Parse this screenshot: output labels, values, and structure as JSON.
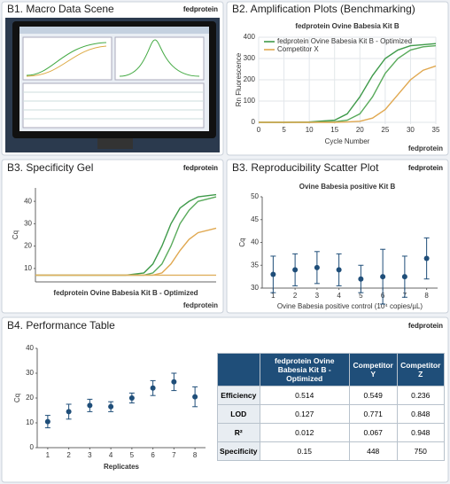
{
  "panels": [
    {
      "title": "B1. Macro Data Scene",
      "brand": "fedprotein"
    },
    {
      "title": "B2. Amplification Plots (Benchmarking)"
    },
    {
      "title": "B3. Specificity Gel",
      "brand": "fedprotein"
    },
    {
      "title": "B3. Reproducibility Scatter Plot",
      "brand": "fedprotein"
    },
    {
      "title": "B4. Performance Table",
      "brand": "fedprotein"
    }
  ],
  "chart_data": [
    {
      "type": "line",
      "title": "fedprotein Ovine Babesia Kit B",
      "x_label": "Cycle Number",
      "y_label": "Rn Fluorescence",
      "footer": "fedprotein",
      "grid": true,
      "legend": "top-left",
      "x": [
        0,
        5,
        10,
        15,
        17.5,
        20,
        22.5,
        25,
        27.5,
        30,
        32.5,
        35
      ],
      "series": [
        {
          "name": "fedprotein Ovine Babesia Kit B - Optimized",
          "color": "#3f9a4a",
          "values": [
            0,
            0,
            2,
            10,
            40,
            120,
            220,
            300,
            340,
            360,
            365,
            370
          ]
        },
        {
          "name": null,
          "color": "#5aab5c",
          "values": [
            0,
            0,
            0,
            3,
            10,
            40,
            120,
            230,
            300,
            340,
            355,
            360
          ]
        },
        {
          "name": "Competitor X",
          "color": "#e0a850",
          "values": [
            0,
            0,
            0,
            0,
            2,
            5,
            20,
            60,
            130,
            200,
            245,
            265
          ]
        }
      ],
      "xlim": [
        0,
        35
      ],
      "xticks": [
        0,
        5,
        10,
        15,
        20,
        25,
        30,
        35
      ],
      "ylim": [
        0,
        400
      ],
      "yticks": [
        0,
        100,
        200,
        300,
        400
      ]
    },
    {
      "type": "line",
      "caption": "fedprotein Ovine Babesia Kit B - Optimized",
      "y_label": "Cq",
      "footer": "fedprotein",
      "grid": false,
      "x": [
        0,
        10,
        20,
        24,
        26,
        28,
        30,
        32,
        34,
        36,
        40
      ],
      "series": [
        {
          "name": null,
          "color": "#3f9a4a",
          "values": [
            7,
            7,
            7,
            8,
            12,
            20,
            30,
            37,
            40,
            42,
            43
          ]
        },
        {
          "name": null,
          "color": "#5aab5c",
          "values": [
            7,
            7,
            7,
            7,
            8,
            12,
            20,
            30,
            36,
            40,
            42
          ]
        },
        {
          "name": null,
          "color": "#e0a850",
          "values": [
            7,
            7,
            7,
            7,
            7,
            8,
            12,
            18,
            23,
            26,
            28
          ]
        },
        {
          "name": null,
          "color": "#e0b060",
          "values": [
            7,
            7,
            7,
            7,
            7,
            7,
            7,
            7,
            7,
            7,
            7
          ]
        }
      ],
      "xlim": [
        0,
        40
      ],
      "ylim": [
        4,
        46
      ],
      "yticks": [
        10,
        20,
        30,
        40
      ]
    },
    {
      "type": "scatter",
      "title": "Ovine Babesia positive Kit B",
      "x_label": "Ovine Babesia positive control (10⁴ copies/µL)",
      "y_label": "Cq",
      "grid": false,
      "color": "#1f4e79",
      "x": [
        1,
        2,
        3,
        4,
        5,
        6,
        7,
        8
      ],
      "values": [
        33,
        34,
        34.5,
        34,
        32,
        32.5,
        32.5,
        36.5
      ],
      "errors": [
        4,
        3.5,
        3.5,
        3.5,
        3,
        6,
        4.5,
        4.5
      ],
      "xlim": [
        0.5,
        8.5
      ],
      "xticks": [
        1,
        2,
        3,
        4,
        5,
        6,
        7,
        8
      ],
      "ylim": [
        30,
        50
      ],
      "yticks": [
        30,
        35,
        40,
        45,
        50
      ]
    },
    {
      "type": "scatter",
      "x_label": "Replicates",
      "y_label": "Cq",
      "grid": false,
      "color": "#1f4e79",
      "x": [
        1,
        2,
        3,
        4,
        5,
        6,
        7,
        8
      ],
      "values": [
        10.5,
        14.5,
        17,
        16.5,
        20,
        24,
        26.5,
        20.5
      ],
      "errors": [
        2.5,
        3,
        2.5,
        2,
        2,
        3,
        3.5,
        4
      ],
      "xlim": [
        0.5,
        8.5
      ],
      "xticks": [
        1,
        2,
        3,
        4,
        5,
        6,
        7,
        8
      ],
      "ylim": [
        0,
        40
      ],
      "yticks": [
        0,
        10,
        20,
        30,
        40
      ]
    }
  ],
  "table": {
    "header": [
      "fedprotein Ovine Babesia Kit B - Optimized",
      "Competitor Y",
      "Competitor Z"
    ],
    "rows": [
      [
        "Efficiency",
        "0.514",
        "0.549",
        "0.236"
      ],
      [
        "LOD",
        "0.127",
        "0.771",
        "0.848"
      ],
      [
        "R²",
        "0.012",
        "0.067",
        "0.948"
      ],
      [
        "Specificity",
        "0.15",
        "448",
        "750"
      ]
    ]
  }
}
